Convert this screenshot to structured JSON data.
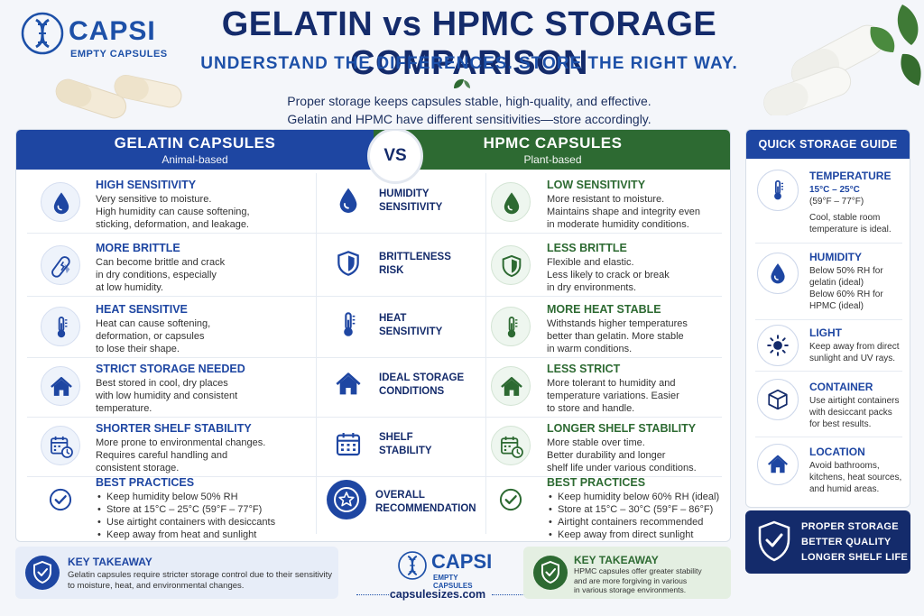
{
  "colors": {
    "blue": "#1e46a2",
    "navy": "#142b6b",
    "green": "#2d6a32"
  },
  "logo": {
    "brand": "CAPSI",
    "sub": "EMPTY CAPSULES"
  },
  "header": {
    "title": "GELATIN vs HPMC STORAGE COMPARISON",
    "subtitle": "UNDERSTAND THE DIFFERENCES. STORE THE RIGHT WAY.",
    "intro_1": "Proper storage keeps capsules stable, high-quality, and effective.",
    "intro_2": "Gelatin and HPMC have different sensitivities—store accordingly."
  },
  "gelatin": {
    "title": "GELATIN CAPSULES",
    "subtitle": "Animal-based",
    "rows": [
      {
        "icon": "droplet-icon",
        "title": "HIGH SENSITIVITY",
        "lines": [
          "Very sensitive to moisture.",
          "High humidity can cause softening,",
          "sticking, deformation, and leakage."
        ]
      },
      {
        "icon": "cracked-capsule-icon",
        "title": "MORE BRITTLE",
        "lines": [
          "Can become brittle and crack",
          "in dry conditions, especially",
          "at low humidity."
        ]
      },
      {
        "icon": "thermometer-icon",
        "title": "HEAT SENSITIVE",
        "lines": [
          "Heat can cause softening,",
          "deformation, or capsules",
          "to lose their shape."
        ]
      },
      {
        "icon": "house-icon",
        "title": "STRICT STORAGE NEEDED",
        "lines": [
          "Best stored in cool, dry places",
          "with low humidity and consistent",
          "temperature."
        ]
      },
      {
        "icon": "calendar-clock-icon",
        "title": "SHORTER SHELF STABILITY",
        "lines": [
          "More prone to environmental changes.",
          "Requires careful handling and",
          "consistent storage."
        ]
      }
    ],
    "best_title": "BEST PRACTICES",
    "best": [
      "Keep humidity below 50% RH",
      "Store at 15°C – 25°C (59°F – 77°F)",
      "Use airtight containers with desiccants",
      "Keep away from heat and sunlight"
    ]
  },
  "vs_label": "VS",
  "middle": [
    {
      "icon": "droplet-icon",
      "line1": "HUMIDITY",
      "line2": "SENSITIVITY"
    },
    {
      "icon": "shield-icon",
      "line1": "BRITTLENESS",
      "line2": "RISK"
    },
    {
      "icon": "thermometer-icon",
      "line1": "HEAT",
      "line2": "SENSITIVITY"
    },
    {
      "icon": "house-icon",
      "line1": "IDEAL STORAGE",
      "line2": "CONDITIONS"
    },
    {
      "icon": "calendar-icon",
      "line1": "SHELF",
      "line2": "STABILITY"
    },
    {
      "icon": "star-badge-icon",
      "line1": "OVERALL",
      "line2": "RECOMMENDATION"
    }
  ],
  "hpmc": {
    "title": "HPMC CAPSULES",
    "subtitle": "Plant-based",
    "rows": [
      {
        "icon": "droplet-icon",
        "title": "LOW SENSITIVITY",
        "lines": [
          "More resistant to moisture.",
          "Maintains shape and integrity even",
          "in moderate humidity conditions."
        ]
      },
      {
        "icon": "shield-icon",
        "title": "LESS BRITTLE",
        "lines": [
          "Flexible and elastic.",
          "Less likely to crack or break",
          "in dry environments."
        ]
      },
      {
        "icon": "thermometer-icon",
        "title": "MORE HEAT STABLE",
        "lines": [
          "Withstands higher temperatures",
          "better than gelatin. More stable",
          "in warm conditions."
        ]
      },
      {
        "icon": "house-icon",
        "title": "LESS STRICT",
        "lines": [
          "More tolerant to humidity and",
          "temperature variations. Easier",
          "to store and handle."
        ]
      },
      {
        "icon": "calendar-clock-icon",
        "title": "LONGER SHELF STABILITY",
        "lines": [
          "More stable over time.",
          "Better durability and longer",
          "shelf life under various conditions."
        ]
      }
    ],
    "best_title": "BEST PRACTICES",
    "best": [
      "Keep humidity below 60% RH (ideal)",
      "Store at 15°C – 30°C (59°F – 86°F)",
      "Airtight containers recommended",
      "Keep away from direct sunlight"
    ]
  },
  "guide": {
    "title": "QUICK STORAGE GUIDE",
    "temperature": {
      "title": "TEMPERATURE",
      "range": "15°C – 25°C",
      "range_f": "(59°F – 77°F)",
      "note_1": "Cool, stable room",
      "note_2": "temperature is ideal."
    },
    "humidity": {
      "title": "HUMIDITY",
      "l1": "Below 50% RH for",
      "l2": "gelatin (ideal)",
      "l3": "Below 60% RH for",
      "l4": "HPMC (ideal)"
    },
    "light": {
      "title": "LIGHT",
      "l1": "Keep away from direct",
      "l2": "sunlight and UV rays."
    },
    "container": {
      "title": "CONTAINER",
      "l1": "Use airtight containers",
      "l2": "with desiccant packs",
      "l3": "for best results."
    },
    "location": {
      "title": "LOCATION",
      "l1": "Avoid bathrooms,",
      "l2": "kitchens, heat sources,",
      "l3": "and humid areas."
    }
  },
  "proper": {
    "l1": "PROPER STORAGE",
    "l2": "BETTER QUALITY",
    "l3": "LONGER SHELF LIFE"
  },
  "takeaway_left": {
    "title": "KEY TAKEAWAY",
    "l1": "Gelatin capsules require stricter storage control due to their sensitivity",
    "l2": "to moisture, heat, and environmental changes."
  },
  "takeaway_right": {
    "title": "KEY TAKEAWAY",
    "l1": "HPMC capsules offer greater stability",
    "l2": "and are more forgiving in various",
    "l3": "in various storage environments."
  },
  "site": "capsulesizes.com"
}
